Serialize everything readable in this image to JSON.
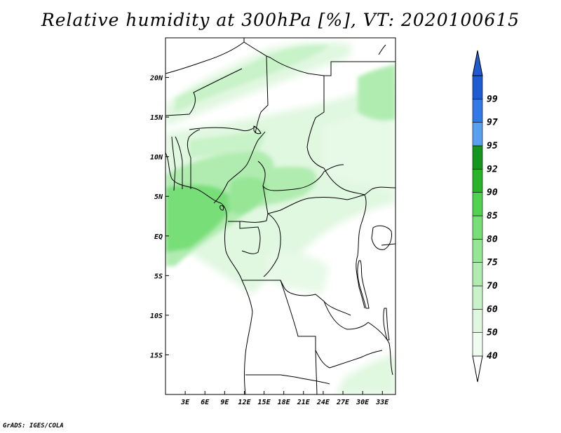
{
  "title": "Relative humidity at 300hPa [%], VT: 2020100615",
  "footer": "GrADS: IGES/COLA",
  "map": {
    "variable": "relative humidity",
    "level_hpa": 300,
    "unit": "%",
    "valid_time": "2020100615",
    "projection": "lat-lon",
    "lon_range": [
      0,
      35
    ],
    "lat_range": [
      -20,
      25
    ],
    "lat_ticks": [
      {
        "value": 20,
        "label": "20N"
      },
      {
        "value": 15,
        "label": "15N"
      },
      {
        "value": 10,
        "label": "10N"
      },
      {
        "value": 5,
        "label": "5N"
      },
      {
        "value": 0,
        "label": "EQ"
      },
      {
        "value": -5,
        "label": "5S"
      },
      {
        "value": -10,
        "label": "10S"
      },
      {
        "value": -15,
        "label": "15S"
      }
    ],
    "lon_ticks": [
      {
        "value": 3,
        "label": "3E"
      },
      {
        "value": 6,
        "label": "6E"
      },
      {
        "value": 9,
        "label": "9E"
      },
      {
        "value": 12,
        "label": "12E"
      },
      {
        "value": 15,
        "label": "15E"
      },
      {
        "value": 18,
        "label": "18E"
      },
      {
        "value": 21,
        "label": "21E"
      },
      {
        "value": 24,
        "label": "24E"
      },
      {
        "value": 27,
        "label": "27E"
      },
      {
        "value": 30,
        "label": "30E"
      },
      {
        "value": 33,
        "label": "33E"
      }
    ]
  },
  "colorbar": {
    "levels": [
      {
        "label": "40",
        "color": "#f0fcf0"
      },
      {
        "label": "50",
        "color": "#dff7df"
      },
      {
        "label": "60",
        "color": "#c8f2c8"
      },
      {
        "label": "70",
        "color": "#b0ecb0"
      },
      {
        "label": "75",
        "color": "#96e696"
      },
      {
        "label": "80",
        "color": "#78de78"
      },
      {
        "label": "85",
        "color": "#50d250"
      },
      {
        "label": "90",
        "color": "#28b428"
      },
      {
        "label": "92",
        "color": "#14961e"
      },
      {
        "label": "95",
        "color": "#5aa0f0"
      },
      {
        "label": "97",
        "color": "#3278e6"
      },
      {
        "label": "99",
        "color": "#1e5ad2"
      }
    ],
    "below_color": "#ffffff",
    "above_color": "#1e5ad2"
  }
}
